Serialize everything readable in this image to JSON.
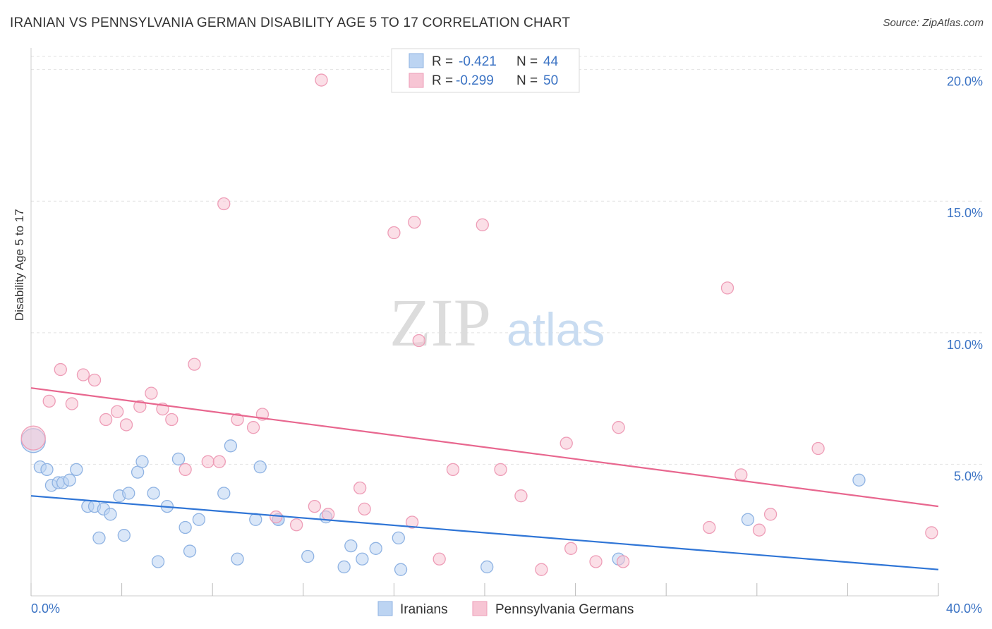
{
  "header": {
    "title": "IRANIAN VS PENNSYLVANIA GERMAN DISABILITY AGE 5 TO 17 CORRELATION CHART",
    "source": "Source: ZipAtlas.com"
  },
  "colors": {
    "blue_fill": "#bcd4f2",
    "blue_stroke": "#8fb3e3",
    "blue_line": "#2f75d6",
    "pink_fill": "#f7c5d4",
    "pink_stroke": "#ee9db7",
    "pink_line": "#e8678f",
    "tick_label": "#3b73c4",
    "grid": "#e2e2e2",
    "axis": "#cccccc"
  },
  "chart_data": {
    "type": "scatter",
    "title": "IRANIAN VS PENNSYLVANIA GERMAN DISABILITY AGE 5 TO 17 CORRELATION CHART",
    "xlabel": "",
    "ylabel": "Disability Age 5 to 17",
    "xlim": [
      0,
      40
    ],
    "ylim": [
      0,
      20.5
    ],
    "x_tick_labels": [
      "0.0%",
      "40.0%"
    ],
    "y_ticks": [
      5,
      10,
      15,
      20
    ],
    "y_tick_labels": [
      "5.0%",
      "10.0%",
      "15.0%",
      "20.0%"
    ],
    "grid": true,
    "watermark": {
      "zip": "ZIP",
      "atlas": "atlas"
    },
    "legend_stats": [
      {
        "r_label": "R =",
        "r_value": "-0.421",
        "n_label": "N =",
        "n_value": "44"
      },
      {
        "r_label": "R =",
        "r_value": "-0.299",
        "n_label": "N =",
        "n_value": "50"
      }
    ],
    "series": [
      {
        "name": "Iranians",
        "color": "#8fb3e3",
        "trend": {
          "x": [
            0,
            40
          ],
          "y": [
            3.8,
            1.0
          ]
        },
        "points": [
          {
            "x": 0.1,
            "y": 5.9,
            "big": true
          },
          {
            "x": 0.4,
            "y": 4.9
          },
          {
            "x": 0.7,
            "y": 4.8
          },
          {
            "x": 0.9,
            "y": 4.2
          },
          {
            "x": 1.2,
            "y": 4.3
          },
          {
            "x": 1.4,
            "y": 4.3
          },
          {
            "x": 1.7,
            "y": 4.4
          },
          {
            "x": 2.0,
            "y": 4.8
          },
          {
            "x": 2.5,
            "y": 3.4
          },
          {
            "x": 2.8,
            "y": 3.4
          },
          {
            "x": 3.0,
            "y": 2.2
          },
          {
            "x": 3.2,
            "y": 3.3
          },
          {
            "x": 3.5,
            "y": 3.1
          },
          {
            "x": 3.9,
            "y": 3.8
          },
          {
            "x": 4.1,
            "y": 2.3
          },
          {
            "x": 4.3,
            "y": 3.9
          },
          {
            "x": 4.7,
            "y": 4.7
          },
          {
            "x": 4.9,
            "y": 5.1
          },
          {
            "x": 5.4,
            "y": 3.9
          },
          {
            "x": 5.6,
            "y": 1.3
          },
          {
            "x": 6.0,
            "y": 3.4
          },
          {
            "x": 6.5,
            "y": 5.2
          },
          {
            "x": 6.8,
            "y": 2.6
          },
          {
            "x": 7.0,
            "y": 1.7
          },
          {
            "x": 7.4,
            "y": 2.9
          },
          {
            "x": 8.5,
            "y": 3.9
          },
          {
            "x": 8.8,
            "y": 5.7
          },
          {
            "x": 9.1,
            "y": 1.4
          },
          {
            "x": 9.9,
            "y": 2.9
          },
          {
            "x": 10.1,
            "y": 4.9
          },
          {
            "x": 10.9,
            "y": 2.9
          },
          {
            "x": 12.2,
            "y": 1.5
          },
          {
            "x": 13.0,
            "y": 3.0
          },
          {
            "x": 13.8,
            "y": 1.1
          },
          {
            "x": 14.1,
            "y": 1.9
          },
          {
            "x": 14.6,
            "y": 1.4
          },
          {
            "x": 15.2,
            "y": 1.8
          },
          {
            "x": 16.2,
            "y": 2.2
          },
          {
            "x": 16.3,
            "y": 1.0
          },
          {
            "x": 20.1,
            "y": 1.1
          },
          {
            "x": 25.9,
            "y": 1.4
          },
          {
            "x": 31.6,
            "y": 2.9
          },
          {
            "x": 36.5,
            "y": 4.4
          },
          {
            "x": 10.9,
            "y": 2.9
          }
        ]
      },
      {
        "name": "Pennsylvania Germans",
        "color": "#ee9db7",
        "trend": {
          "x": [
            0,
            40
          ],
          "y": [
            7.9,
            3.4
          ]
        },
        "points": [
          {
            "x": 0.1,
            "y": 6.0,
            "big": true
          },
          {
            "x": 0.8,
            "y": 7.4
          },
          {
            "x": 1.3,
            "y": 8.6
          },
          {
            "x": 1.8,
            "y": 7.3
          },
          {
            "x": 2.3,
            "y": 8.4
          },
          {
            "x": 2.8,
            "y": 8.2
          },
          {
            "x": 3.3,
            "y": 6.7
          },
          {
            "x": 3.8,
            "y": 7.0
          },
          {
            "x": 4.2,
            "y": 6.5
          },
          {
            "x": 4.8,
            "y": 7.2
          },
          {
            "x": 5.3,
            "y": 7.7
          },
          {
            "x": 5.8,
            "y": 7.1
          },
          {
            "x": 6.2,
            "y": 6.7
          },
          {
            "x": 6.8,
            "y": 4.8
          },
          {
            "x": 7.2,
            "y": 8.8
          },
          {
            "x": 7.8,
            "y": 5.1
          },
          {
            "x": 8.3,
            "y": 5.1
          },
          {
            "x": 8.5,
            "y": 14.9
          },
          {
            "x": 9.1,
            "y": 6.7
          },
          {
            "x": 9.8,
            "y": 6.4
          },
          {
            "x": 10.2,
            "y": 6.9
          },
          {
            "x": 10.8,
            "y": 3.0
          },
          {
            "x": 11.7,
            "y": 2.7
          },
          {
            "x": 12.5,
            "y": 3.4
          },
          {
            "x": 12.8,
            "y": 19.6
          },
          {
            "x": 13.1,
            "y": 3.1
          },
          {
            "x": 14.5,
            "y": 4.1
          },
          {
            "x": 14.7,
            "y": 3.3
          },
          {
            "x": 16.0,
            "y": 13.8
          },
          {
            "x": 16.8,
            "y": 2.8
          },
          {
            "x": 16.9,
            "y": 14.2
          },
          {
            "x": 17.1,
            "y": 9.7
          },
          {
            "x": 18.0,
            "y": 1.4
          },
          {
            "x": 18.6,
            "y": 4.8
          },
          {
            "x": 19.9,
            "y": 14.1
          },
          {
            "x": 20.7,
            "y": 4.8
          },
          {
            "x": 21.6,
            "y": 3.8
          },
          {
            "x": 22.5,
            "y": 1.0
          },
          {
            "x": 23.6,
            "y": 5.8
          },
          {
            "x": 23.8,
            "y": 1.8
          },
          {
            "x": 24.9,
            "y": 1.3
          },
          {
            "x": 25.9,
            "y": 6.4
          },
          {
            "x": 26.1,
            "y": 1.3
          },
          {
            "x": 29.9,
            "y": 2.6
          },
          {
            "x": 30.7,
            "y": 11.7
          },
          {
            "x": 31.3,
            "y": 4.6
          },
          {
            "x": 32.1,
            "y": 2.5
          },
          {
            "x": 32.6,
            "y": 3.1
          },
          {
            "x": 34.7,
            "y": 5.6
          },
          {
            "x": 39.7,
            "y": 2.4
          }
        ]
      }
    ]
  }
}
